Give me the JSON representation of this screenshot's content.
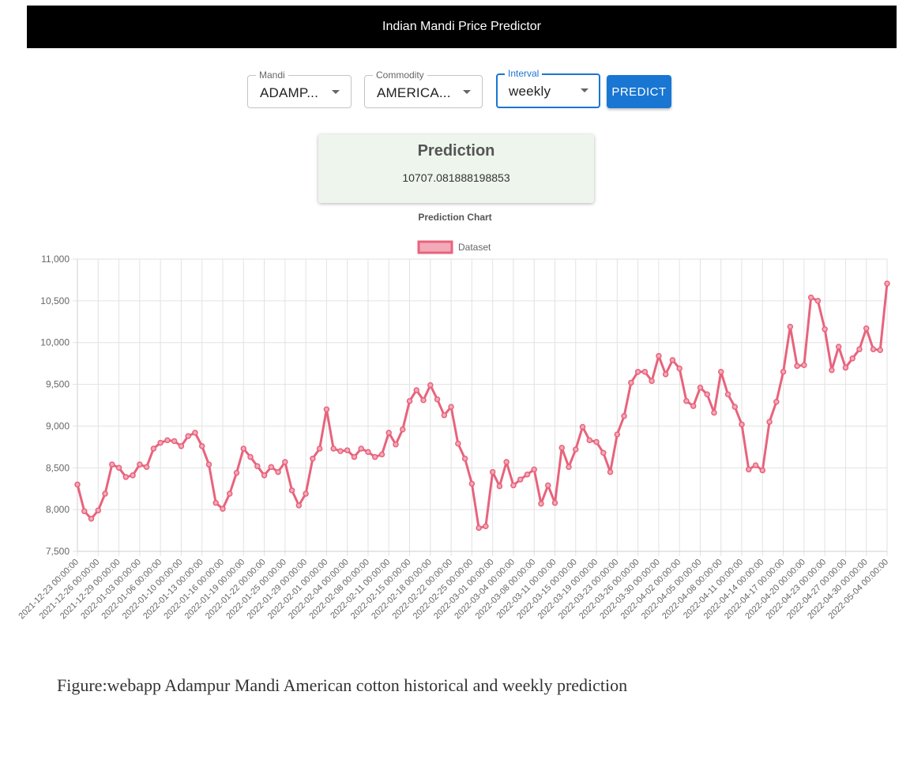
{
  "app": {
    "title": "Indian Mandi Price Predictor"
  },
  "form": {
    "mandi": {
      "label": "Mandi",
      "value": "ADAMP..."
    },
    "commodity": {
      "label": "Commodity",
      "value": "AMERICA..."
    },
    "interval": {
      "label": "Interval",
      "value": "weekly"
    },
    "predict_label": "PREDICT"
  },
  "prediction": {
    "title": "Prediction",
    "value": "10707.081888198853"
  },
  "chart_title": "Prediction Chart",
  "colors": {
    "accent": "#1976d2",
    "line": "#e8637c",
    "fill": "#f3aab8",
    "card": "#edf5ec"
  },
  "chart_data": {
    "type": "line",
    "title": "Prediction Chart",
    "legend": "top-center",
    "grid": true,
    "ylim": [
      7500,
      11000
    ],
    "yticks": [
      "7,500",
      "8,000",
      "8,500",
      "9,000",
      "9,500",
      "10,000",
      "10,500",
      "11,000"
    ],
    "xtick_labels": [
      "2021-12-23 00:00:00",
      "2021-12-26 00:00:00",
      "2021-12-29 00:00:00",
      "2022-01-03 00:00:00",
      "2022-01-06 00:00:00",
      "2022-01-10 00:00:00",
      "2022-01-13 00:00:00",
      "2022-01-16 00:00:00",
      "2022-01-19 00:00:00",
      "2022-01-22 00:00:00",
      "2022-01-25 00:00:00",
      "2022-01-29 00:00:00",
      "2022-02-01 00:00:00",
      "2022-02-04 00:00:00",
      "2022-02-08 00:00:00",
      "2022-02-11 00:00:00",
      "2022-02-15 00:00:00",
      "2022-02-18 00:00:00",
      "2022-02-22 00:00:00",
      "2022-02-25 00:00:00",
      "2022-03-01 00:00:00",
      "2022-03-04 00:00:00",
      "2022-03-08 00:00:00",
      "2022-03-11 00:00:00",
      "2022-03-15 00:00:00",
      "2022-03-19 00:00:00",
      "2022-03-23 00:00:00",
      "2022-03-26 00:00:00",
      "2022-03-30 00:00:00",
      "2022-04-02 00:00:00",
      "2022-04-05 00:00:00",
      "2022-04-08 00:00:00",
      "2022-04-11 00:00:00",
      "2022-04-14 00:00:00",
      "2022-04-17 00:00:00",
      "2022-04-20 00:00:00",
      "2022-04-23 00:00:00",
      "2022-04-27 00:00:00",
      "2022-04-30 00:00:00",
      "2022-05-04 00:00:00"
    ],
    "series": [
      {
        "name": "Dataset",
        "values": [
          8300,
          7980,
          7890,
          7990,
          8190,
          8540,
          8500,
          8390,
          8410,
          8540,
          8510,
          8730,
          8800,
          8830,
          8820,
          8760,
          8880,
          8920,
          8760,
          8540,
          8080,
          8010,
          8190,
          8440,
          8730,
          8630,
          8520,
          8410,
          8510,
          8450,
          8570,
          8230,
          8050,
          8190,
          8610,
          8730,
          9200,
          8730,
          8700,
          8710,
          8630,
          8730,
          8690,
          8630,
          8660,
          8920,
          8780,
          8960,
          9300,
          9430,
          9310,
          9490,
          9320,
          9130,
          9230,
          8790,
          8610,
          8310,
          7780,
          7800,
          8450,
          8280,
          8570,
          8290,
          8360,
          8420,
          8480,
          8070,
          8290,
          8080,
          8740,
          8510,
          8720,
          8990,
          8830,
          8810,
          8680,
          8450,
          8900,
          9120,
          9520,
          9650,
          9650,
          9540,
          9840,
          9620,
          9790,
          9690,
          9300,
          9240,
          9460,
          9380,
          9160,
          9650,
          9380,
          9230,
          9020,
          8480,
          8530,
          8470,
          9050,
          9290,
          9650,
          10190,
          9720,
          9730,
          10540,
          10500,
          10160,
          9670,
          9950,
          9700,
          9810,
          9920,
          10170,
          9920,
          9910,
          10707
        ]
      }
    ]
  },
  "caption": "Figure:webapp Adampur Mandi American cotton historical and weekly prediction"
}
